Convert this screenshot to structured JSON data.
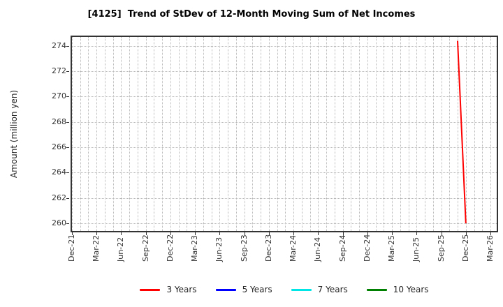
{
  "title": "[4125]  Trend of StDev of 12-Month Moving Sum of Net Incomes",
  "axes": {
    "ylabel": "Amount (million yen)",
    "x_tick_labels": [
      "Dec-21",
      "Mar-22",
      "Jun-22",
      "Sep-22",
      "Dec-22",
      "Mar-23",
      "Jun-23",
      "Sep-23",
      "Dec-23",
      "Mar-24",
      "Jun-24",
      "Sep-24",
      "Dec-24",
      "Mar-25",
      "Jun-25",
      "Sep-25",
      "Dec-25",
      "Mar-26"
    ],
    "y_tick_labels": [
      "260",
      "262",
      "264",
      "266",
      "268",
      "270",
      "272",
      "274"
    ]
  },
  "legend": {
    "items": [
      {
        "label": "3 Years",
        "color": "#ff0000"
      },
      {
        "label": "5 Years",
        "color": "#0000ff"
      },
      {
        "label": "7 Years",
        "color": "#00e6e6"
      },
      {
        "label": "10 Years",
        "color": "#008000"
      }
    ]
  },
  "colors": {
    "background": "#ffffff",
    "grid": "#b8b8b8",
    "spine": "#333333",
    "text": "#262626"
  },
  "chart_data": {
    "type": "line",
    "title": "[4125]  Trend of StDev of 12-Month Moving Sum of Net Incomes",
    "xlabel": "",
    "ylabel": "Amount (million yen)",
    "x_tick_labels": [
      "Dec-21",
      "Mar-22",
      "Jun-22",
      "Sep-22",
      "Dec-22",
      "Mar-23",
      "Jun-23",
      "Sep-23",
      "Dec-23",
      "Mar-24",
      "Jun-24",
      "Sep-24",
      "Dec-24",
      "Mar-25",
      "Jun-25",
      "Sep-25",
      "Dec-25",
      "Mar-26"
    ],
    "x_axis": {
      "start": "Dec-21",
      "end": "Mar-26",
      "major_tick_interval_months": 3,
      "minor_grid_interval_months": 1
    },
    "y_ticks": [
      260,
      262,
      264,
      266,
      268,
      270,
      272,
      274
    ],
    "ylim": [
      259.4,
      274.7
    ],
    "grid": true,
    "legend_position": "bottom",
    "series": [
      {
        "name": "3 Years",
        "color": "#ff0000",
        "points": [
          {
            "x": "Nov-25",
            "y": 274.4
          },
          {
            "x": "Dec-25",
            "y": 260.0
          }
        ]
      },
      {
        "name": "5 Years",
        "color": "#0000ff",
        "points": []
      },
      {
        "name": "7 Years",
        "color": "#00e6e6",
        "points": []
      },
      {
        "name": "10 Years",
        "color": "#008000",
        "points": []
      }
    ]
  }
}
